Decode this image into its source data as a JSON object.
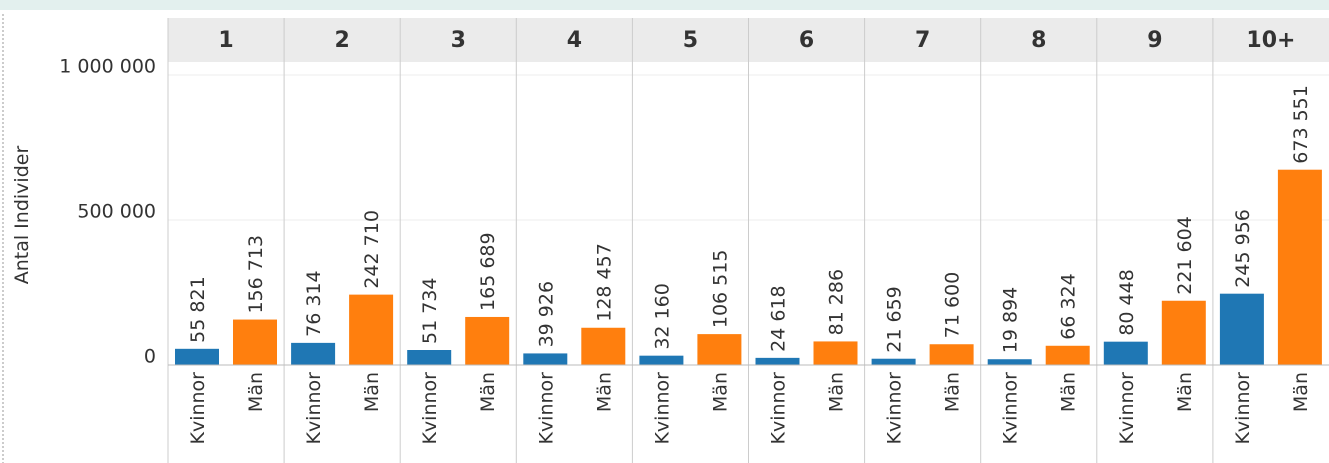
{
  "chart_data": {
    "type": "bar",
    "y_label": "Antal Individer",
    "groups": [
      "1",
      "2",
      "3",
      "4",
      "5",
      "6",
      "7",
      "8",
      "9",
      "10+"
    ],
    "series": [
      {
        "name": "Kvinnor",
        "color": "#1f77b4",
        "values": [
          55821,
          76314,
          51734,
          39926,
          32160,
          24618,
          21659,
          19894,
          80448,
          245956
        ],
        "value_labels": [
          "55 821",
          "76 314",
          "51 734",
          "39 926",
          "32 160",
          "24 618",
          "21 659",
          "19 894",
          "80 448",
          "245 956"
        ]
      },
      {
        "name": "Män",
        "color": "#ff7f0e",
        "values": [
          156713,
          242710,
          165689,
          128457,
          106515,
          81286,
          71600,
          66324,
          221604,
          673551
        ],
        "value_labels": [
          "156 713",
          "242 710",
          "165 689",
          "128 457",
          "106 515",
          "81 286",
          "71 600",
          "66 324",
          "221 604",
          "673 551"
        ]
      }
    ],
    "ylim": [
      0,
      1045000
    ],
    "yticks": [
      0,
      {
        "value": 500000,
        "label": "500 000"
      },
      {
        "value": 1000000,
        "label": "1 000 000"
      }
    ],
    "grid": true
  }
}
